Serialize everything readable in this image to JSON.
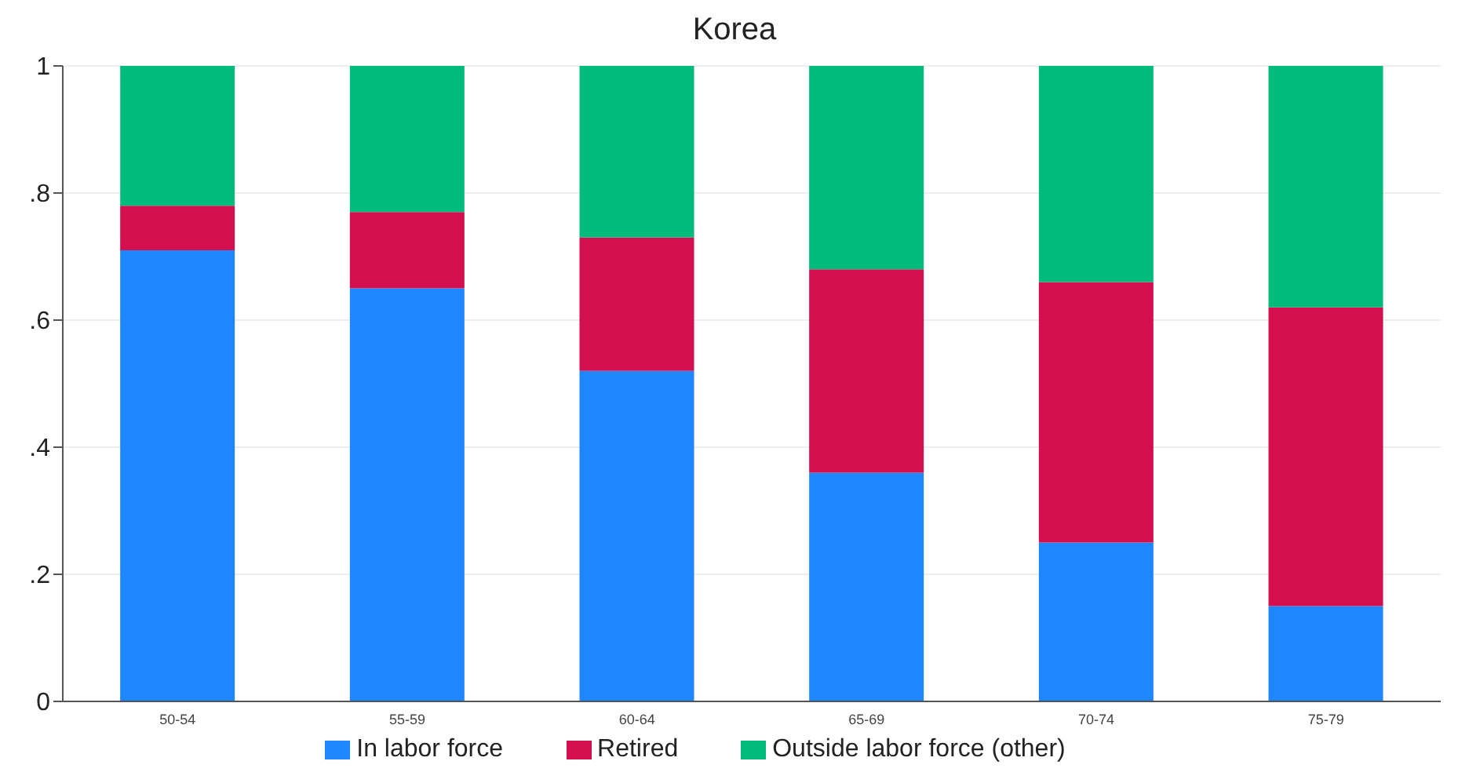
{
  "chart_data": {
    "type": "bar",
    "title": "Korea",
    "stacked": true,
    "categories": [
      "50-54",
      "55-59",
      "60-64",
      "65-69",
      "70-74",
      "75-79"
    ],
    "series": [
      {
        "name": "In labor force",
        "color": "#1e86ff",
        "values": [
          0.71,
          0.65,
          0.52,
          0.36,
          0.25,
          0.15
        ]
      },
      {
        "name": "Retired",
        "color": "#d30f50",
        "values": [
          0.07,
          0.12,
          0.21,
          0.32,
          0.41,
          0.47
        ]
      },
      {
        "name": "Outside labor force (other)",
        "color": "#00bb7b",
        "values": [
          0.22,
          0.23,
          0.27,
          0.32,
          0.34,
          0.38
        ]
      }
    ],
    "ylim": [
      0,
      1
    ],
    "yticks": [
      0,
      {
        "value": 0.2,
        "label": ".2"
      },
      {
        "value": 0.4,
        "label": ".4"
      },
      {
        "value": 0.6,
        "label": ".6"
      },
      {
        "value": 0.8,
        "label": ".8"
      },
      1
    ],
    "grid": "y",
    "legend": "bottom"
  }
}
